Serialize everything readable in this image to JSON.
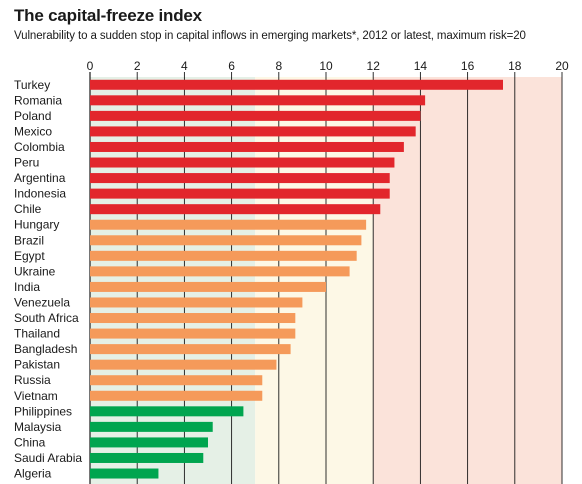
{
  "title": "The capital-freeze index",
  "subtitle": "Vulnerability to a sudden stop in capital inflows in emerging markets*, 2012 or latest, maximum risk=20",
  "chart_data": {
    "type": "bar",
    "orientation": "horizontal",
    "title": "The capital-freeze index",
    "subtitle": "Vulnerability to a sudden stop in capital inflows in emerging markets*, 2012 or latest, maximum risk=20",
    "xlabel": "",
    "ylabel": "",
    "xlim": [
      0,
      20
    ],
    "xticks": [
      0,
      2,
      4,
      6,
      8,
      10,
      12,
      14,
      16,
      18,
      20
    ],
    "axis_position": "top",
    "grid": true,
    "background_bands": [
      {
        "from": 0,
        "to": 7,
        "color": "#e5f0e6"
      },
      {
        "from": 7,
        "to": 12,
        "color": "#fdf8e6"
      },
      {
        "from": 12,
        "to": 20,
        "color": "#fbe3da"
      }
    ],
    "categories": [
      "Turkey",
      "Romania",
      "Poland",
      "Mexico",
      "Colombia",
      "Peru",
      "Argentina",
      "Indonesia",
      "Chile",
      "Hungary",
      "Brazil",
      "Egypt",
      "Ukraine",
      "India",
      "Venezuela",
      "South Africa",
      "Thailand",
      "Bangladesh",
      "Pakistan",
      "Russia",
      "Vietnam",
      "Philippines",
      "Malaysia",
      "China",
      "Saudi Arabia",
      "Algeria"
    ],
    "values": [
      17.5,
      14.2,
      14.0,
      13.8,
      13.3,
      12.9,
      12.7,
      12.7,
      12.3,
      11.7,
      11.5,
      11.3,
      11.0,
      10.0,
      9.0,
      8.7,
      8.7,
      8.5,
      7.9,
      7.3,
      7.3,
      6.5,
      5.2,
      5.0,
      4.8,
      2.9
    ],
    "risk_groups": [
      "high",
      "high",
      "high",
      "high",
      "high",
      "high",
      "high",
      "high",
      "high",
      "medium",
      "medium",
      "medium",
      "medium",
      "medium",
      "medium",
      "medium",
      "medium",
      "medium",
      "medium",
      "medium",
      "medium",
      "low",
      "low",
      "low",
      "low",
      "low"
    ],
    "colors": {
      "high": "#e2262c",
      "medium": "#f59a5a",
      "low": "#00a54f"
    }
  }
}
